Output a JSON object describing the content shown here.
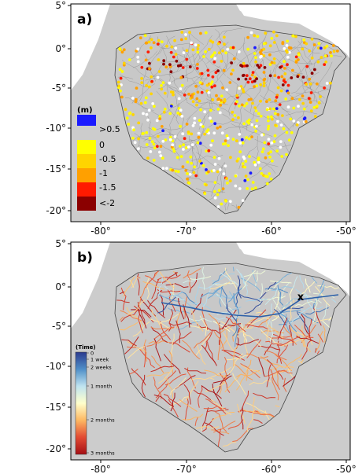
{
  "panels": [
    {
      "letter": "a)",
      "legend": {
        "title": "(m)",
        "entries": [
          {
            "label": ">0.5",
            "color": "#1a1aff"
          },
          {
            "label": "0",
            "color": "#ffff00"
          },
          {
            "label": "-0.5",
            "color": "#ffd400"
          },
          {
            "label": "-1",
            "color": "#ffa000"
          },
          {
            "label": "-1.5",
            "color": "#ff1a00"
          },
          {
            "label": "<-2",
            "color": "#8b0000"
          }
        ]
      }
    },
    {
      "letter": "b)",
      "colorbar": {
        "title": "(Time)",
        "ticks": [
          "0",
          "1 week",
          "2 weeks",
          "1 month",
          "2 months",
          "3 months"
        ],
        "colors": [
          "#2b3a8f",
          "#4f8fc8",
          "#bfe3f0",
          "#ffffcc",
          "#fdb862",
          "#e24a33",
          "#a50f15"
        ]
      },
      "marker_label": "x"
    }
  ],
  "axes": {
    "x_ticks": [
      "-80°",
      "-70°",
      "-60°",
      "-50°"
    ],
    "y_ticks": [
      "5°",
      "0°",
      "-5°",
      "-10°",
      "-15°",
      "-20°"
    ]
  },
  "colors": {
    "land": "#cccccc",
    "background": "#ffffff",
    "basin_outline": "#444444"
  }
}
